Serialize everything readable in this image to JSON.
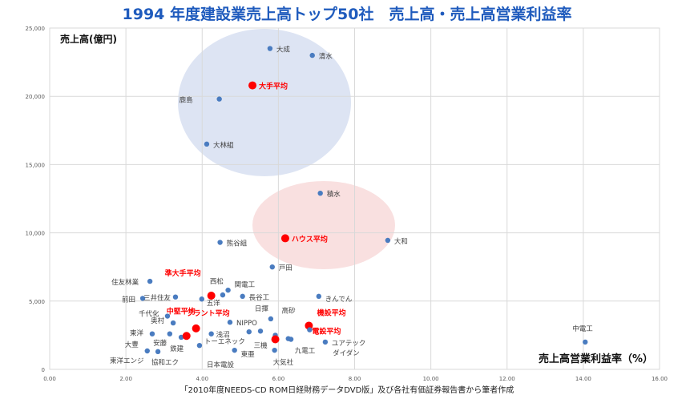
{
  "title": "1994 年度建設業売上高トップ50社　売上高・売上高営業利益率",
  "source": "「2010年度NEEDS-CD ROM日経財務データDVD版」及び各社有価証券報告書から筆者作成",
  "chart_data": {
    "type": "scatter",
    "title": "1994 年度建設業売上高トップ50社　売上高・売上高営業利益率",
    "xlabel": "売上高営業利益率（%）",
    "ylabel": "売上高(億円)",
    "xlim": [
      0,
      16
    ],
    "ylim": [
      0,
      25000
    ],
    "xticks": [
      "0.00",
      "2.00",
      "4.00",
      "6.00",
      "8.00",
      "10.00",
      "12.00",
      "14.00",
      "16.00"
    ],
    "yticks": [
      "0",
      "5,000",
      "10,000",
      "15,000",
      "20,000",
      "25,000"
    ],
    "grid": true,
    "colors": {
      "point": "#4a7cc0",
      "average": "#ff0000",
      "average_label": "#ff0000",
      "blue_group": "#dde4f3",
      "pink_group": "#f9e0e0"
    },
    "points": [
      {
        "name": "大成",
        "x": 5.78,
        "y": 23500,
        "avg": false
      },
      {
        "name": "清水",
        "x": 6.89,
        "y": 23000,
        "avg": false
      },
      {
        "name": "大手平均",
        "x": 5.32,
        "y": 20800,
        "avg": true
      },
      {
        "name": "鹿島",
        "x": 4.45,
        "y": 19800,
        "avg": false
      },
      {
        "name": "大林組",
        "x": 4.12,
        "y": 16500,
        "avg": false
      },
      {
        "name": "積水",
        "x": 7.1,
        "y": 12900,
        "avg": false
      },
      {
        "name": "ハウス平均",
        "x": 6.18,
        "y": 9600,
        "avg": true
      },
      {
        "name": "大和",
        "x": 8.87,
        "y": 9450,
        "avg": false
      },
      {
        "name": "熊谷組",
        "x": 4.47,
        "y": 9300,
        "avg": false
      },
      {
        "name": "戸田",
        "x": 5.84,
        "y": 7500,
        "avg": false
      },
      {
        "name": "住友林業",
        "x": 2.63,
        "y": 6450,
        "avg": false
      },
      {
        "name": "関電工",
        "x": 4.68,
        "y": 5800,
        "avg": false
      },
      {
        "name": "西松",
        "x": 4.54,
        "y": 5450,
        "avg": false
      },
      {
        "name": "五洋",
        "x": 3.99,
        "y": 5150,
        "avg": false
      },
      {
        "name": "準大手平均",
        "x": 4.24,
        "y": 5400,
        "avg": true
      },
      {
        "name": "前田",
        "x": 2.44,
        "y": 5200,
        "avg": false
      },
      {
        "name": "三井住友",
        "x": 3.3,
        "y": 5300,
        "avg": false
      },
      {
        "name": "長谷工",
        "x": 5.06,
        "y": 5350,
        "avg": false
      },
      {
        "name": "きんでん",
        "x": 7.06,
        "y": 5350,
        "avg": false
      },
      {
        "name": "千代化",
        "x": 3.09,
        "y": 3900,
        "avg": false
      },
      {
        "name": "奥村",
        "x": 3.24,
        "y": 3400,
        "avg": false
      },
      {
        "name": "東洋",
        "x": 2.69,
        "y": 2600,
        "avg": false
      },
      {
        "name": "",
        "x": 3.15,
        "y": 2600,
        "avg": false
      },
      {
        "name": "鉄建",
        "x": 3.45,
        "y": 2350,
        "avg": false
      },
      {
        "name": "中堅平均",
        "x": 3.59,
        "y": 2450,
        "avg": true
      },
      {
        "name": "プラント平均",
        "x": 3.84,
        "y": 3000,
        "avg": true
      },
      {
        "name": "浅沼",
        "x": 4.24,
        "y": 2600,
        "avg": false
      },
      {
        "name": "NIPPO",
        "x": 4.73,
        "y": 3450,
        "avg": false
      },
      {
        "name": "日揮",
        "x": 5.8,
        "y": 3700,
        "avg": false
      },
      {
        "name": "",
        "x": 5.23,
        "y": 2750,
        "avg": false
      },
      {
        "name": "",
        "x": 5.53,
        "y": 2800,
        "avg": false
      },
      {
        "name": "高砂",
        "x": 5.92,
        "y": 2500,
        "avg": false
      },
      {
        "name": "三機",
        "x": 5.9,
        "y": 2300,
        "avg": false
      },
      {
        "name": "機設平均",
        "x": 5.92,
        "y": 2200,
        "avg": true
      },
      {
        "name": "電設平均",
        "x": 6.8,
        "y": 3200,
        "avg": true
      },
      {
        "name": "",
        "x": 6.82,
        "y": 2900,
        "avg": false
      },
      {
        "name": "九電工",
        "x": 6.26,
        "y": 2250,
        "avg": false
      },
      {
        "name": "ダイダン",
        "x": 6.33,
        "y": 2200,
        "avg": false
      },
      {
        "name": "ユアテック",
        "x": 7.23,
        "y": 2000,
        "avg": false
      },
      {
        "name": "トーエネック",
        "x": 3.93,
        "y": 1750,
        "avg": false
      },
      {
        "name": "東亜",
        "x": 4.85,
        "y": 1400,
        "avg": false
      },
      {
        "name": "大気社",
        "x": 5.9,
        "y": 1400,
        "avg": false
      },
      {
        "name": "大豊",
        "x": 2.56,
        "y": 1350,
        "avg": false
      },
      {
        "name": "安藤",
        "x": 2.84,
        "y": 1300,
        "avg": false
      },
      {
        "name": "中電工",
        "x": 14.05,
        "y": 2000,
        "avg": false
      }
    ],
    "extra_labels": [
      "日本電設",
      "東洋エンジ",
      "協和エク"
    ]
  }
}
